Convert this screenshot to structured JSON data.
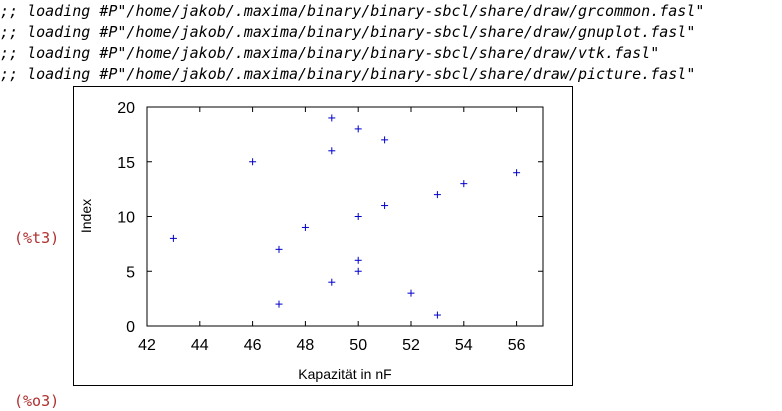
{
  "console": {
    "log_lines": [
      ";; loading #P\"/home/jakob/.maxima/binary/binary-sbcl/share/draw/grcommon.fasl\"",
      ";; loading #P\"/home/jakob/.maxima/binary/binary-sbcl/share/draw/gnuplot.fasl\"",
      ";; loading #P\"/home/jakob/.maxima/binary/binary-sbcl/share/draw/vtk.fasl\"",
      ";; loading #P\"/home/jakob/.maxima/binary/binary-sbcl/share/draw/picture.fasl\""
    ],
    "input_label": "(%t3)",
    "output_label": "(%o3)"
  },
  "colors": {
    "marker": "#0000cc",
    "label": "#b03030"
  },
  "chart_data": {
    "type": "scatter",
    "title": "",
    "xlabel": "Kapazität in nF",
    "ylabel": "Index",
    "xlim": [
      42,
      57
    ],
    "ylim": [
      0,
      20
    ],
    "xticks": [
      42,
      44,
      46,
      48,
      50,
      52,
      54,
      56
    ],
    "yticks": [
      0,
      5,
      10,
      15,
      20
    ],
    "grid": false,
    "marker": "+",
    "points": [
      {
        "x": 43,
        "y": 8
      },
      {
        "x": 46,
        "y": 15
      },
      {
        "x": 47,
        "y": 2
      },
      {
        "x": 47,
        "y": 7
      },
      {
        "x": 48,
        "y": 9
      },
      {
        "x": 49,
        "y": 4
      },
      {
        "x": 49,
        "y": 16
      },
      {
        "x": 49,
        "y": 19
      },
      {
        "x": 50,
        "y": 5
      },
      {
        "x": 50,
        "y": 6
      },
      {
        "x": 50,
        "y": 10
      },
      {
        "x": 50,
        "y": 18
      },
      {
        "x": 51,
        "y": 11
      },
      {
        "x": 51,
        "y": 17
      },
      {
        "x": 52,
        "y": 3
      },
      {
        "x": 53,
        "y": 1
      },
      {
        "x": 53,
        "y": 12
      },
      {
        "x": 54,
        "y": 13
      },
      {
        "x": 56,
        "y": 14
      }
    ]
  }
}
